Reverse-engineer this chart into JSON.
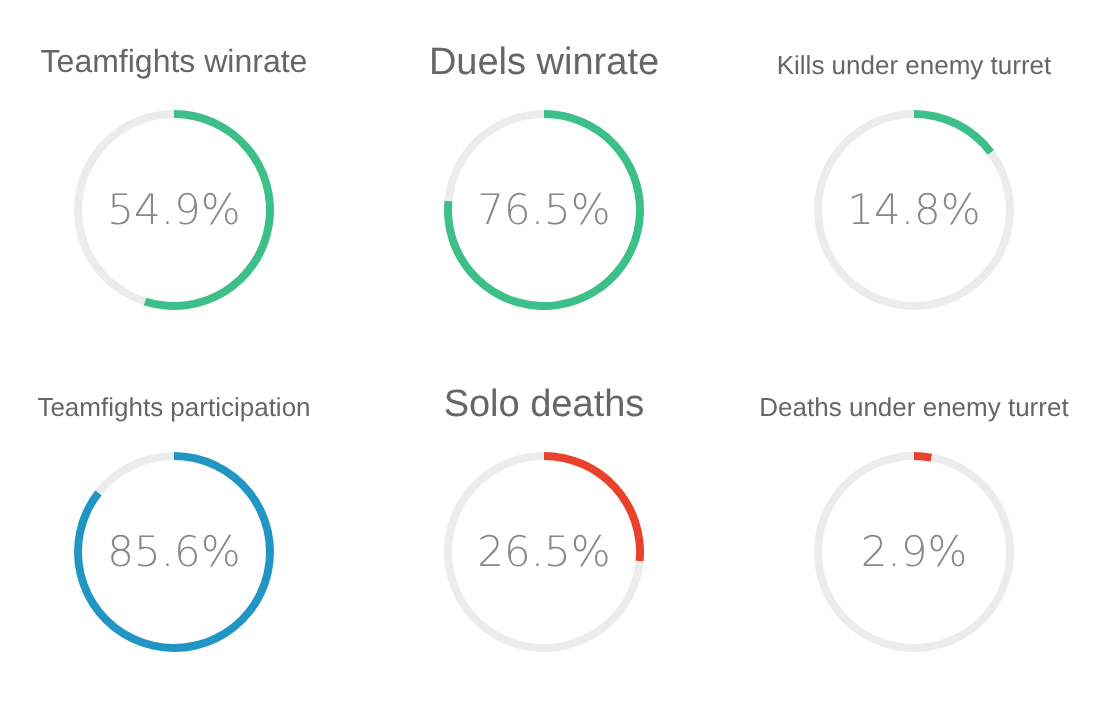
{
  "chart_data": [
    {
      "type": "donut",
      "title": "Teamfights winrate",
      "categories": [
        null,
        null
      ],
      "values": [
        54.9,
        45.1
      ],
      "colors": [
        "#3dbf8a",
        "#ececec"
      ],
      "annotations": [
        "54.9%"
      ]
    },
    {
      "type": "donut",
      "title": "Duels winrate",
      "categories": [
        null,
        null
      ],
      "values": [
        76.5,
        23.5
      ],
      "colors": [
        "#3dbf8a",
        "#ececec"
      ],
      "annotations": [
        "76.5%"
      ]
    },
    {
      "type": "donut",
      "title": "Kills under enemy turret",
      "categories": [
        null,
        null
      ],
      "values": [
        14.8,
        85.2
      ],
      "colors": [
        "#3dbf8a",
        "#ececec"
      ],
      "annotations": [
        "14.8%"
      ]
    },
    {
      "type": "donut",
      "title": "Teamfights participation",
      "categories": [
        null,
        null
      ],
      "values": [
        85.6,
        14.4
      ],
      "colors": [
        "#2196c4",
        "#ececec"
      ],
      "annotations": [
        "85.6%"
      ]
    },
    {
      "type": "donut",
      "title": "Solo deaths",
      "categories": [
        null,
        null
      ],
      "values": [
        26.5,
        73.5
      ],
      "colors": [
        "#e8412c",
        "#ececec"
      ],
      "annotations": [
        "26.5%"
      ]
    },
    {
      "type": "donut",
      "title": "Deaths under enemy turret",
      "categories": [
        null,
        null
      ],
      "values": [
        2.9,
        97.1
      ],
      "colors": [
        "#e8412c",
        "#ececec"
      ],
      "annotations": [
        "2.9%"
      ]
    }
  ]
}
